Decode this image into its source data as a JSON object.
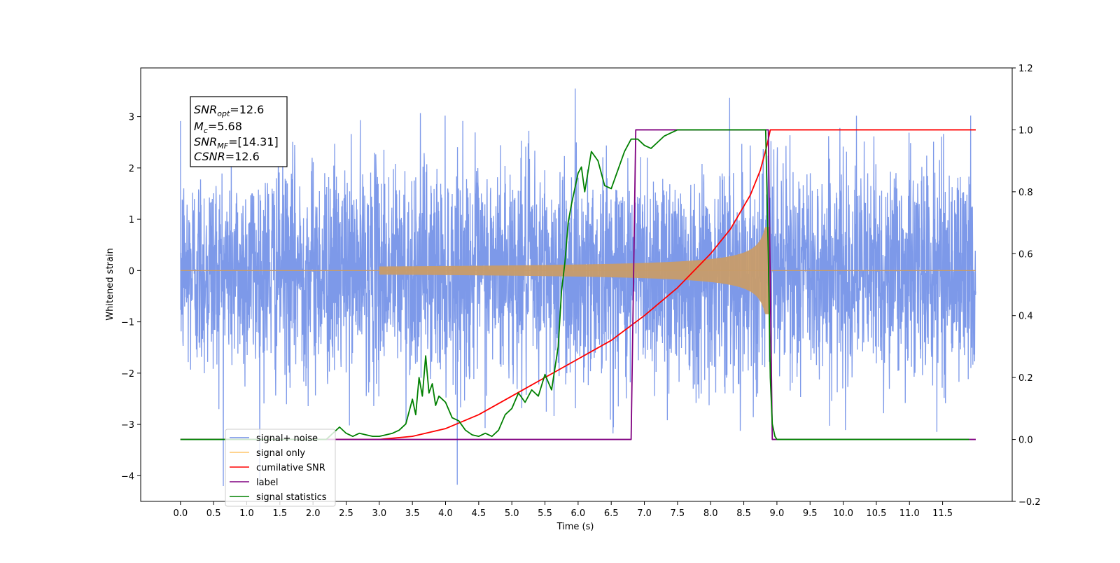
{
  "chart_data": {
    "type": "line",
    "x_axis": {
      "label": "Time (s)",
      "range": [
        -0.6,
        12.55
      ],
      "ticks": [
        "0.0",
        "0.5",
        "1.0",
        "1.5",
        "2.0",
        "2.5",
        "3.0",
        "3.5",
        "4.0",
        "4.5",
        "5.0",
        "5.5",
        "6.0",
        "6.5",
        "7.0",
        "7.5",
        "8.0",
        "8.5",
        "9.0",
        "9.5",
        "10.0",
        "10.5",
        "11.0",
        "11.5"
      ]
    },
    "y_axis_left": {
      "label": "Whitened strain",
      "range": [
        -4.5,
        3.95
      ],
      "ticks": [
        "3",
        "2",
        "1",
        "0",
        "−1",
        "−2",
        "−3",
        "−4"
      ]
    },
    "y_axis_right": {
      "label": "",
      "range": [
        -0.2,
        1.2
      ],
      "ticks": [
        "1.2",
        "1.0",
        "0.8",
        "0.6",
        "0.4",
        "0.2",
        "0.0",
        "−0.2"
      ]
    },
    "annotation": {
      "lines": [
        {
          "main": "SNR",
          "sub": "opt",
          "rest": "=12.6"
        },
        {
          "main": "M",
          "sub": "c",
          "rest": "=5.68"
        },
        {
          "main": "SNR",
          "sub": "MF",
          "rest": "=[14.31]"
        },
        {
          "main": "CSNR",
          "sub": "",
          "rest": "=12.6"
        }
      ]
    },
    "legend": {
      "placement": "lower-left",
      "entries": [
        {
          "label": "signal+ noise",
          "color": "#6f8ee6"
        },
        {
          "label": "signal only",
          "color": "#ffc66a"
        },
        {
          "label": "cumilative SNR",
          "color": "#ff0000"
        },
        {
          "label": "label",
          "color": "#800080"
        },
        {
          "label": "signal statistics",
          "color": "#008000"
        }
      ]
    },
    "series": [
      {
        "name": "signal+ noise",
        "axis": "left",
        "color": "#7694e8",
        "x_range": [
          0.0,
          12.0
        ],
        "amplitude_description": "white noise, envelope approx ±1.5 to ±3.5",
        "noise_std": 1.0
      },
      {
        "name": "signal only",
        "axis": "left",
        "color": "#c89c6a",
        "x_range": [
          0.0,
          12.0
        ],
        "chirp_start": 3.0,
        "merger_time": 8.9,
        "peak_amplitude": 0.85
      },
      {
        "name": "cumilative SNR",
        "axis": "right",
        "color": "#ff0000",
        "x": [
          0.0,
          3.0,
          3.5,
          4.0,
          4.5,
          5.0,
          5.5,
          6.0,
          6.5,
          7.0,
          7.5,
          8.0,
          8.3,
          8.6,
          8.75,
          8.85,
          8.9,
          12.0
        ],
        "y": [
          0.0,
          0.0,
          0.01,
          0.035,
          0.08,
          0.14,
          0.2,
          0.26,
          0.32,
          0.4,
          0.49,
          0.6,
          0.68,
          0.79,
          0.87,
          0.95,
          1.0,
          1.0
        ]
      },
      {
        "name": "label",
        "axis": "right",
        "color": "#800080",
        "x": [
          0.0,
          6.8,
          6.87,
          8.87,
          8.93,
          12.0
        ],
        "y": [
          0.0,
          0.0,
          1.0,
          1.0,
          0.0,
          0.0
        ]
      },
      {
        "name": "signal statistics",
        "axis": "right",
        "color": "#008000",
        "x": [
          0.0,
          2.2,
          2.3,
          2.4,
          2.5,
          2.6,
          2.7,
          2.8,
          2.9,
          3.0,
          3.1,
          3.2,
          3.3,
          3.4,
          3.5,
          3.55,
          3.6,
          3.65,
          3.7,
          3.75,
          3.8,
          3.85,
          3.9,
          4.0,
          4.1,
          4.2,
          4.3,
          4.4,
          4.5,
          4.6,
          4.7,
          4.8,
          4.9,
          5.0,
          5.1,
          5.2,
          5.3,
          5.4,
          5.5,
          5.6,
          5.7,
          5.75,
          5.8,
          5.85,
          5.9,
          6.0,
          6.05,
          6.1,
          6.2,
          6.3,
          6.4,
          6.5,
          6.6,
          6.7,
          6.8,
          6.9,
          7.0,
          7.1,
          7.2,
          7.3,
          7.4,
          7.5,
          7.7,
          8.0,
          8.5,
          8.83,
          8.87,
          8.9,
          8.93,
          8.97,
          9.0,
          9.1,
          11.9
        ],
        "y": [
          0.0,
          0.0,
          0.02,
          0.04,
          0.02,
          0.01,
          0.02,
          0.015,
          0.01,
          0.01,
          0.015,
          0.02,
          0.03,
          0.05,
          0.13,
          0.08,
          0.2,
          0.14,
          0.27,
          0.15,
          0.18,
          0.11,
          0.14,
          0.12,
          0.07,
          0.06,
          0.03,
          0.015,
          0.01,
          0.02,
          0.01,
          0.03,
          0.08,
          0.1,
          0.15,
          0.12,
          0.16,
          0.14,
          0.21,
          0.16,
          0.3,
          0.48,
          0.57,
          0.7,
          0.76,
          0.86,
          0.88,
          0.8,
          0.93,
          0.9,
          0.82,
          0.81,
          0.87,
          0.93,
          0.97,
          0.97,
          0.95,
          0.94,
          0.96,
          0.98,
          0.99,
          1.0,
          1.0,
          1.0,
          1.0,
          1.0,
          0.6,
          0.2,
          0.05,
          0.01,
          0.0,
          0.0,
          0.0
        ]
      }
    ]
  }
}
